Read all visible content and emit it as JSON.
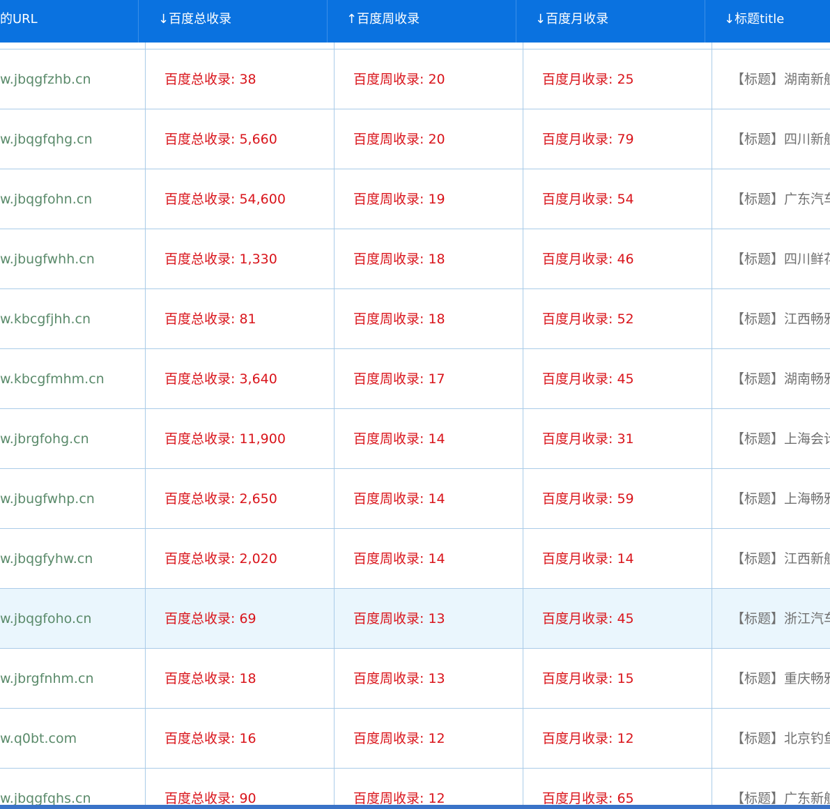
{
  "columns": {
    "url": "的URL",
    "total": "↓百度总收录",
    "week": "↑百度周收录",
    "month": "↓百度月收录",
    "title": "↓标题title"
  },
  "rows": [
    {
      "url": "w.jbqgfzhb.cn",
      "total": "百度总收录: 38",
      "week": "百度周收录: 20",
      "month": "百度月收录: 25",
      "title": "【标题】湖南新航"
    },
    {
      "url": "w.jbqgfqhg.cn",
      "total": "百度总收录: 5,660",
      "week": "百度周收录: 20",
      "month": "百度月收录: 79",
      "title": "【标题】四川新航"
    },
    {
      "url": "w.jbqgfohn.cn",
      "total": "百度总收录: 54,600",
      "week": "百度周收录: 19",
      "month": "百度月收录: 54",
      "title": "【标题】广东汽车"
    },
    {
      "url": "w.jbugfwhh.cn",
      "total": "百度总收录: 1,330",
      "week": "百度周收录: 18",
      "month": "百度月收录: 46",
      "title": "【标题】四川鲜花"
    },
    {
      "url": "w.kbcgfjhh.cn",
      "total": "百度总收录: 81",
      "week": "百度周收录: 18",
      "month": "百度月收录: 52",
      "title": "【标题】江西畅雅"
    },
    {
      "url": "w.kbcgfmhm.cn",
      "total": "百度总收录: 3,640",
      "week": "百度周收录: 17",
      "month": "百度月收录: 45",
      "title": "【标题】湖南畅雅"
    },
    {
      "url": "w.jbrgfohg.cn",
      "total": "百度总收录: 11,900",
      "week": "百度周收录: 14",
      "month": "百度月收录: 31",
      "title": "【标题】上海会计"
    },
    {
      "url": "w.jbugfwhp.cn",
      "total": "百度总收录: 2,650",
      "week": "百度周收录: 14",
      "month": "百度月收录: 59",
      "title": "【标题】上海畅雅"
    },
    {
      "url": "w.jbqgfyhw.cn",
      "total": "百度总收录: 2,020",
      "week": "百度周收录: 14",
      "month": "百度月收录: 14",
      "title": "【标题】江西新航"
    },
    {
      "url": "w.jbqgfoho.cn",
      "total": "百度总收录: 69",
      "week": "百度周收录: 13",
      "month": "百度月收录: 45",
      "title": "【标题】浙江汽车",
      "highlight": true
    },
    {
      "url": "w.jbrgfnhm.cn",
      "total": "百度总收录: 18",
      "week": "百度周收录: 13",
      "month": "百度月收录: 15",
      "title": "【标题】重庆畅雅"
    },
    {
      "url": "w.q0bt.com",
      "total": "百度总收录: 16",
      "week": "百度周收录: 12",
      "month": "百度月收录: 12",
      "title": "【标题】北京钓鱼"
    },
    {
      "url": "w.jbqgfqhs.cn",
      "total": "百度总收录: 90",
      "week": "百度周收录: 12",
      "month": "百度月收录: 65",
      "title": "【标题】广东新航"
    }
  ]
}
